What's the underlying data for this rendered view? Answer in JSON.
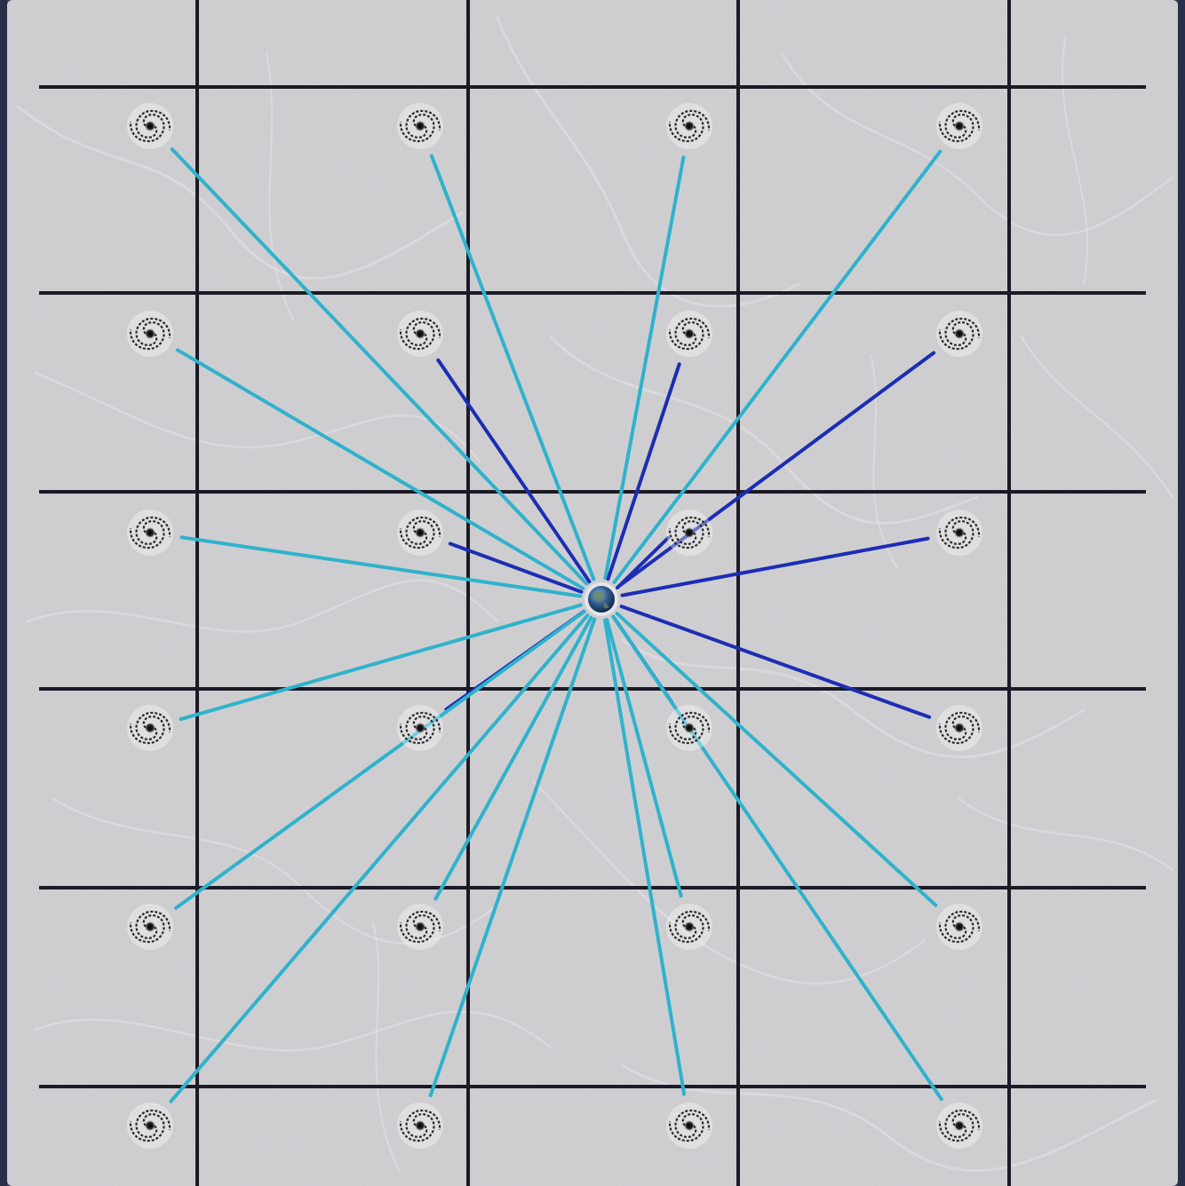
{
  "colors": {
    "frame": "#2a2e4a",
    "panel": "#c9c9cc",
    "filament": "#e4e2ea",
    "grid_line": "#1c1a26",
    "sight_line_far": "#2fb2cc",
    "sight_line_near": "#1c2db4",
    "galaxy": "#2a2a2a",
    "observer": "#27406e"
  },
  "icons": {
    "galaxy": "spiral-galaxy-icon",
    "observer": "earth-icon"
  },
  "diagram": {
    "type": "comoving-grid",
    "grid_columns": 4,
    "grid_rows": 6,
    "galaxy_count": 24,
    "observer_count": 1,
    "sight_line_count": 23
  }
}
